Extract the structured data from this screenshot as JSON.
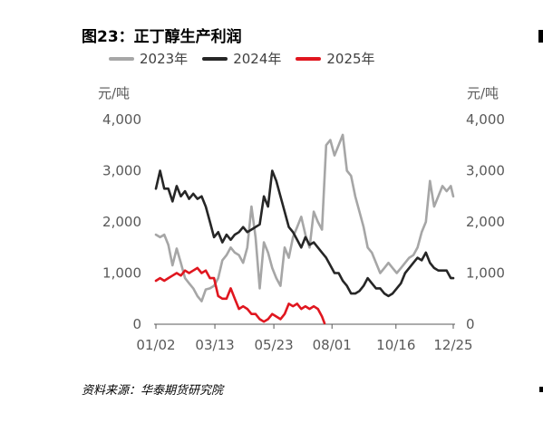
{
  "title": "图23：正丁醇生产利润",
  "source": "资料来源：华泰期货研究院",
  "chart_data": {
    "type": "line",
    "title": "图23：正丁醇生产利润",
    "ylabel_left": "元/吨",
    "ylabel_right": "元/吨",
    "ylim": [
      0,
      4000
    ],
    "yticks": [
      0,
      1000,
      2000,
      3000,
      4000
    ],
    "ytick_labels": [
      "0",
      "1,000",
      "2,000",
      "3,000",
      "4,000"
    ],
    "xlim": [
      0,
      358
    ],
    "xticks": [
      0,
      71,
      142,
      212,
      289,
      358
    ],
    "xtick_labels": [
      "01/02",
      "03/13",
      "05/23",
      "08/01",
      "10/16",
      "12/25"
    ],
    "legend_position": "top",
    "grid": false,
    "series": [
      {
        "name": "2023年",
        "color": "#a6a6a6",
        "x": [
          0,
          5,
          10,
          15,
          20,
          25,
          30,
          35,
          40,
          45,
          50,
          55,
          60,
          65,
          70,
          75,
          80,
          85,
          90,
          95,
          100,
          105,
          110,
          115,
          120,
          125,
          130,
          135,
          140,
          145,
          150,
          155,
          160,
          165,
          170,
          175,
          180,
          185,
          190,
          195,
          200,
          205,
          210,
          215,
          220,
          225,
          230,
          235,
          240,
          245,
          250,
          255,
          260,
          265,
          270,
          275,
          280,
          285,
          290,
          295,
          300,
          305,
          310,
          315,
          320,
          325,
          330,
          335,
          340,
          345,
          350,
          355,
          358
        ],
        "values": [
          1750,
          1700,
          1750,
          1550,
          1150,
          1480,
          1200,
          900,
          800,
          700,
          550,
          450,
          680,
          700,
          750,
          900,
          1250,
          1350,
          1500,
          1400,
          1350,
          1200,
          1500,
          2300,
          1700,
          700,
          1600,
          1400,
          1100,
          900,
          750,
          1500,
          1300,
          1700,
          1900,
          2100,
          1750,
          1500,
          2200,
          2000,
          1850,
          3500,
          3600,
          3300,
          3500,
          3700,
          3000,
          2900,
          2500,
          2200,
          1900,
          1500,
          1400,
          1200,
          1000,
          1100,
          1200,
          1100,
          1000,
          1100,
          1200,
          1300,
          1350,
          1500,
          1800,
          2000,
          2800,
          2300,
          2500,
          2700,
          2600,
          2700,
          2500
        ]
      },
      {
        "name": "2024年",
        "color": "#262626",
        "x": [
          0,
          5,
          10,
          15,
          20,
          25,
          30,
          35,
          40,
          45,
          50,
          55,
          60,
          65,
          70,
          75,
          80,
          85,
          90,
          95,
          100,
          105,
          110,
          115,
          120,
          125,
          130,
          135,
          140,
          145,
          150,
          155,
          160,
          165,
          170,
          175,
          180,
          185,
          190,
          195,
          200,
          205,
          210,
          215,
          220,
          225,
          230,
          235,
          240,
          245,
          250,
          255,
          260,
          265,
          270,
          275,
          280,
          285,
          290,
          295,
          300,
          305,
          310,
          315,
          320,
          325,
          330,
          335,
          340,
          345,
          350,
          355,
          358
        ],
        "values": [
          2650,
          3000,
          2650,
          2650,
          2400,
          2700,
          2500,
          2600,
          2450,
          2550,
          2450,
          2500,
          2300,
          2000,
          1700,
          1800,
          1600,
          1750,
          1650,
          1750,
          1800,
          1900,
          1800,
          1850,
          1900,
          1950,
          2500,
          2300,
          3000,
          2800,
          2500,
          2200,
          1900,
          1800,
          1650,
          1500,
          1700,
          1550,
          1600,
          1500,
          1400,
          1300,
          1150,
          1000,
          1000,
          850,
          750,
          600,
          600,
          650,
          750,
          900,
          800,
          700,
          700,
          600,
          550,
          600,
          700,
          800,
          1000,
          1100,
          1200,
          1300,
          1250,
          1400,
          1200,
          1100,
          1050,
          1050,
          1050,
          900,
          900
        ]
      },
      {
        "name": "2025年",
        "color": "#e0161f",
        "x": [
          0,
          5,
          10,
          15,
          20,
          25,
          30,
          35,
          40,
          45,
          50,
          55,
          60,
          65,
          70,
          75,
          80,
          85,
          90,
          95,
          100,
          105,
          110,
          115,
          120,
          125,
          130,
          135,
          140,
          145,
          150,
          155,
          160,
          165,
          170,
          175,
          180,
          185,
          190,
          195,
          200,
          203
        ],
        "values": [
          850,
          900,
          850,
          900,
          950,
          1000,
          950,
          1050,
          1000,
          1050,
          1100,
          1000,
          1050,
          900,
          900,
          550,
          500,
          500,
          700,
          500,
          300,
          350,
          300,
          200,
          200,
          100,
          50,
          100,
          200,
          150,
          100,
          200,
          400,
          350,
          400,
          300,
          350,
          300,
          350,
          300,
          150,
          20
        ]
      }
    ]
  }
}
